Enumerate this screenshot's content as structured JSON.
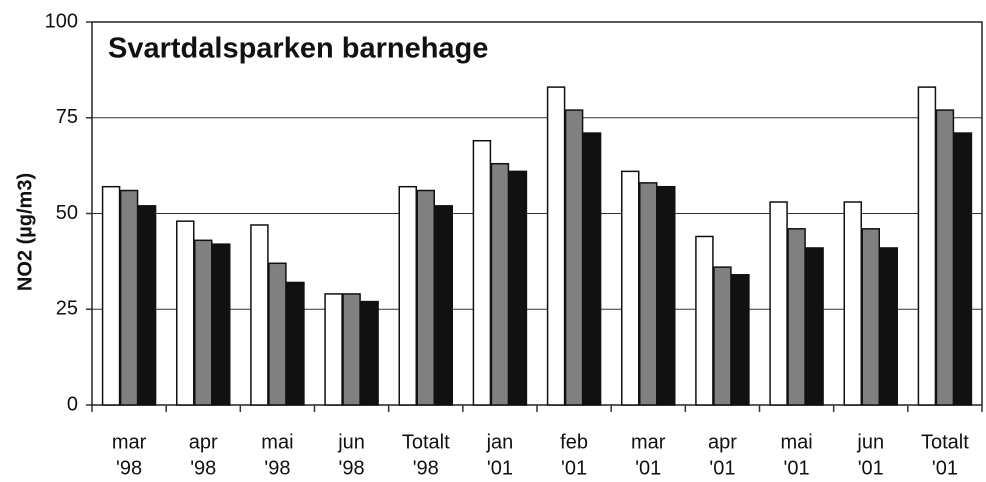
{
  "chart_data": {
    "type": "bar",
    "title": "Svartdalsparken barnehage",
    "y_label": "NO2 (µg/m3)",
    "categories": [
      [
        "mar",
        "'98"
      ],
      [
        "apr",
        "'98"
      ],
      [
        "mai",
        "'98"
      ],
      [
        "jun",
        "'98"
      ],
      [
        "Totalt",
        "'98"
      ],
      [
        "jan",
        "'01"
      ],
      [
        "feb",
        "'01"
      ],
      [
        "mar",
        "'01"
      ],
      [
        "apr",
        "'01"
      ],
      [
        "mai",
        "'01"
      ],
      [
        "jun",
        "'01"
      ],
      [
        "Totalt",
        "'01"
      ]
    ],
    "series": [
      {
        "color": "#ffffff",
        "values": [
          57,
          48,
          47,
          29,
          57,
          69,
          83,
          61,
          44,
          53,
          53,
          83
        ]
      },
      {
        "color": "#808080",
        "values": [
          56,
          43,
          37,
          29,
          56,
          63,
          77,
          58,
          36,
          46,
          46,
          77
        ]
      },
      {
        "color": "#111111",
        "values": [
          52,
          42,
          32,
          27,
          52,
          61,
          71,
          57,
          34,
          41,
          41,
          71
        ]
      }
    ],
    "ylim": [
      0,
      100
    ],
    "yticks": [
      0,
      25,
      50,
      75,
      100
    ],
    "grid": true
  }
}
